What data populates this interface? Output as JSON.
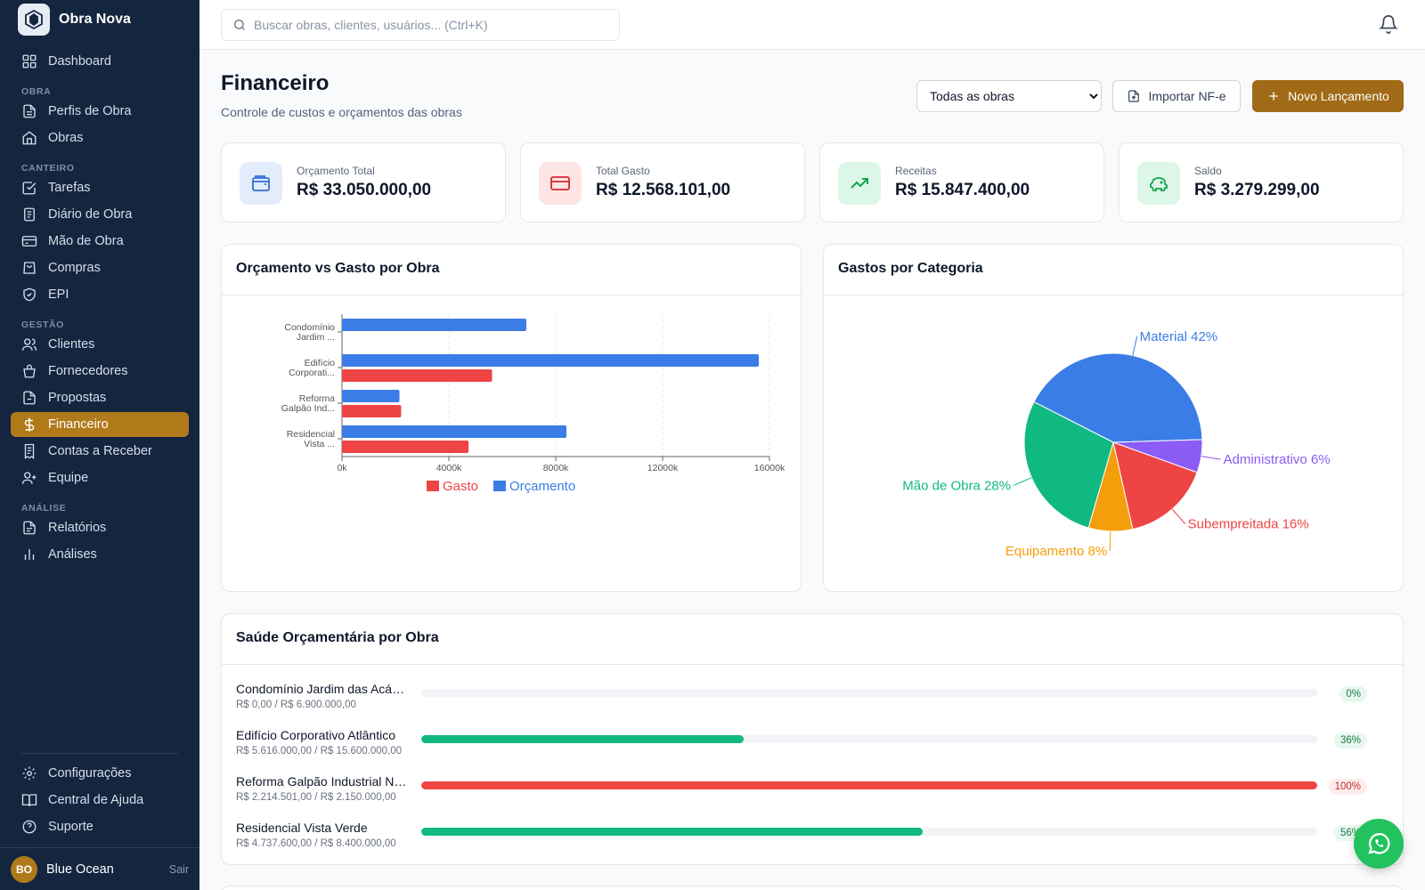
{
  "sidebar": {
    "brand": "Obra Nova",
    "dashboard": "Dashboard",
    "sections": {
      "obra": "OBRA",
      "canteiro": "CANTEIRO",
      "gestao": "GESTÃO",
      "analise": "ANÁLISE"
    },
    "items": {
      "perfis": "Perfis de Obra",
      "obras": "Obras",
      "tarefas": "Tarefas",
      "diario": "Diário de Obra",
      "mao_obra": "Mão de Obra",
      "compras": "Compras",
      "epi": "EPI",
      "clientes": "Clientes",
      "fornecedores": "Fornecedores",
      "propostas": "Propostas",
      "financeiro": "Financeiro",
      "contas": "Contas a Receber",
      "equipe": "Equipe",
      "relatorios": "Relatórios",
      "analises": "Análises"
    },
    "bottom": {
      "config": "Configurações",
      "ajuda": "Central de Ajuda",
      "suporte": "Suporte"
    },
    "user": {
      "initials": "BO",
      "name": "Blue Ocean",
      "logout": "Sair"
    }
  },
  "header": {
    "search_placeholder": "Buscar obras, clientes, usuários... (Ctrl+K)"
  },
  "page": {
    "title": "Financeiro",
    "subtitle": "Controle de custos e orçamentos das obras",
    "filter_selected": "Todas as obras",
    "import_label": "Importar NF-e",
    "new_label": "Novo Lançamento"
  },
  "stats": [
    {
      "label": "Orçamento Total",
      "value": "R$ 33.050.000,00",
      "color": "#2f6fd6"
    },
    {
      "label": "Total Gasto",
      "value": "R$ 12.568.101,00",
      "color": "#dc2626"
    },
    {
      "label": "Receitas",
      "value": "R$ 15.847.400,00",
      "color": "#16a34a"
    },
    {
      "label": "Saldo",
      "value": "R$ 3.279.299,00",
      "color": "#16a34a"
    }
  ],
  "panels": {
    "bar_title": "Orçamento vs Gasto por Obra",
    "pie_title": "Gastos por Categoria",
    "health_title": "Saúde Orçamentária por Obra"
  },
  "chart_data": [
    {
      "type": "bar",
      "orientation": "horizontal",
      "categories": [
        [
          "Condomínio",
          "Jardim ..."
        ],
        [
          "Edifício",
          "Corporati..."
        ],
        [
          "Reforma",
          "Galpão Ind..."
        ],
        [
          "Residencial",
          "Vista ..."
        ]
      ],
      "series": [
        {
          "name": "Orçamento",
          "color": "#3b7de6",
          "values": [
            6900000,
            15600000,
            2150000,
            8400000
          ]
        },
        {
          "name": "Gasto",
          "color": "#ef4444",
          "values": [
            0,
            5616000,
            2214501,
            4737600
          ]
        }
      ],
      "xlim": [
        0,
        16000000
      ],
      "x_ticks": [
        {
          "value": 0,
          "label": "0k"
        },
        {
          "value": 4000000,
          "label": "4000k"
        },
        {
          "value": 8000000,
          "label": "8000k"
        },
        {
          "value": 12000000,
          "label": "12000k"
        },
        {
          "value": 16000000,
          "label": "16000k"
        }
      ],
      "legend": [
        {
          "name": "Gasto",
          "color": "#ef4444"
        },
        {
          "name": "Orçamento",
          "color": "#3b7de6"
        }
      ],
      "legend_position": "bottom",
      "grid": "vertical dashed"
    },
    {
      "type": "pie",
      "slices": [
        {
          "label": "Material 42%",
          "value": 42,
          "color": "#3b7de6"
        },
        {
          "label": "Administrativo 6%",
          "value": 6,
          "color": "#8b5cf6"
        },
        {
          "label": "Subempreitada 16%",
          "value": 16,
          "color": "#ef4444"
        },
        {
          "label": "Equipamento 8%",
          "value": 8,
          "color": "#f59e0b"
        },
        {
          "label": "Mão de Obra 28%",
          "value": 28,
          "color": "#10b981"
        }
      ]
    }
  ],
  "health": [
    {
      "name": "Condomínio Jardim das Acácias",
      "sub": "R$ 0,00 / R$ 6.900.000,00",
      "pct": 0,
      "badge": "0%",
      "status": "ok"
    },
    {
      "name": "Edifício Corporativo Atlântico",
      "sub": "R$ 5.616.000,00 / R$ 15.600.000,00",
      "pct": 36,
      "badge": "36%",
      "status": "ok"
    },
    {
      "name": "Reforma Galpão Industrial Norte",
      "sub": "R$ 2.214.501,00 / R$ 2.150.000,00",
      "pct": 100,
      "badge": "100%",
      "status": "over"
    },
    {
      "name": "Residencial Vista Verde",
      "sub": "R$ 4.737.600,00 / R$ 8.400.000,00",
      "pct": 56,
      "badge": "56%",
      "status": "ok"
    }
  ],
  "colors": {
    "accent": "#b07a1a",
    "sidebar_bg": "#14253f",
    "ok": "#10b981",
    "over": "#ef4444"
  },
  "icons": {
    "search": "search-icon",
    "bell": "bell-icon",
    "whatsapp": "whatsapp-icon"
  }
}
